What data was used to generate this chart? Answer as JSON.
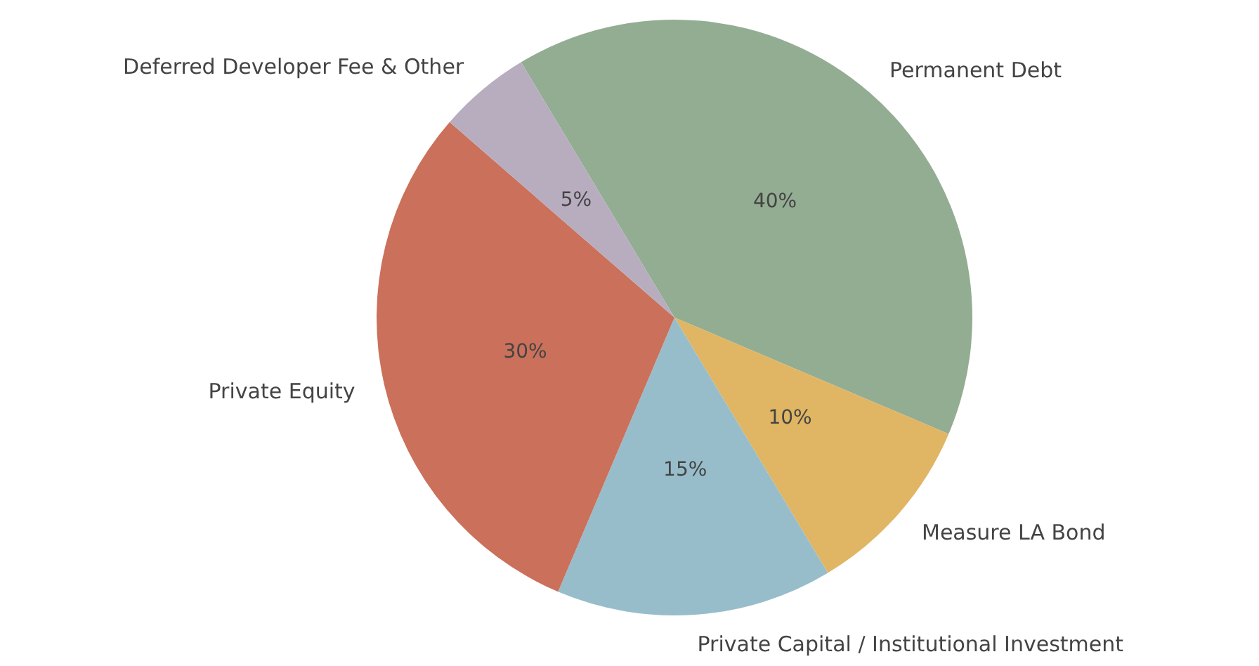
{
  "chart_data": {
    "type": "pie",
    "categories": [
      "Permanent Debt",
      "Measure LA Bond",
      "Private Capital / Institutional Investment",
      "Private Equity",
      "Deferred Developer Fee & Other"
    ],
    "values": [
      40,
      10,
      15,
      30,
      5
    ],
    "colors": [
      "#93ad93",
      "#e0b563",
      "#97bdcb",
      "#cb705a",
      "#b7adbf"
    ],
    "value_labels": [
      "40%",
      "10%",
      "15%",
      "30%",
      "5%"
    ],
    "legend": false
  }
}
